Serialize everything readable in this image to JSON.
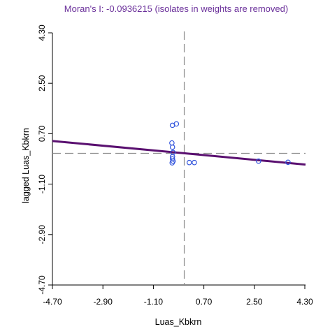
{
  "chart_data": {
    "type": "scatter",
    "title": "Moran's I: -0.0936215 (isolates in weights are removed)",
    "xlabel": "Luas_Kbkrn",
    "ylabel": "lagged Luas_Kbkrn",
    "xlim": [
      -4.7,
      4.3
    ],
    "ylim": [
      -4.7,
      4.3
    ],
    "x_ticks": [
      "-4.70",
      "-2.90",
      "-1.10",
      "0.70",
      "2.50",
      "4.30"
    ],
    "y_ticks": [
      "-4.70",
      "-2.90",
      "-1.10",
      "0.70",
      "2.50",
      "4.30"
    ],
    "grid": false,
    "reference_lines": {
      "x": 0.0,
      "y": 0.0
    },
    "regression_line": {
      "slope": -0.0936215,
      "intercept": 0.0
    },
    "series": [
      {
        "points": [
          {
            "x": -0.42,
            "y": 1.0
          },
          {
            "x": -0.28,
            "y": 1.05
          },
          {
            "x": -0.44,
            "y": 0.37
          },
          {
            "x": -0.42,
            "y": 0.22
          },
          {
            "x": -0.4,
            "y": 0.03
          },
          {
            "x": -0.42,
            "y": -0.12
          },
          {
            "x": -0.42,
            "y": -0.2
          },
          {
            "x": -0.4,
            "y": -0.28
          },
          {
            "x": -0.43,
            "y": -0.34
          },
          {
            "x": 0.18,
            "y": -0.33
          },
          {
            "x": 0.36,
            "y": -0.33
          },
          {
            "x": 2.65,
            "y": -0.28
          },
          {
            "x": 3.7,
            "y": -0.32
          }
        ]
      }
    ],
    "colors": {
      "points": "#3355dd",
      "regression": "#5a1070",
      "reference": "#8c8c8c",
      "title": "#6a2f9a"
    }
  }
}
